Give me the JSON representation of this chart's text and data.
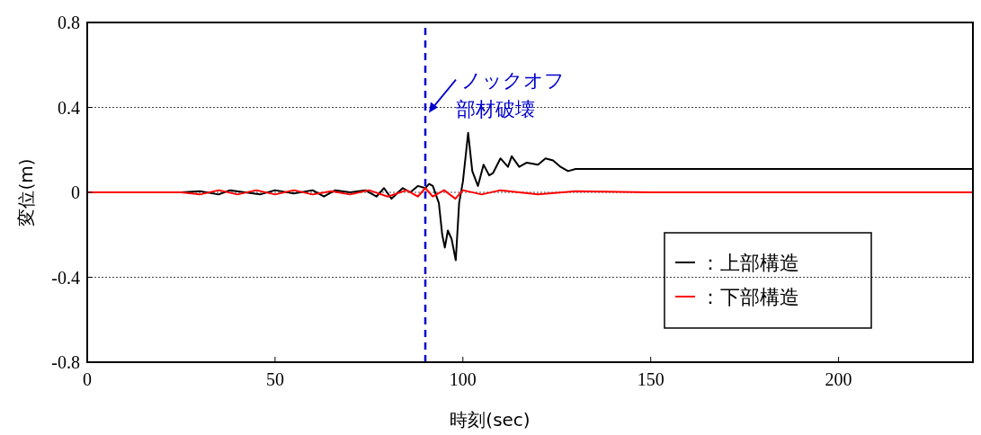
{
  "chart_data": {
    "type": "line",
    "xlabel": "時刻(sec)",
    "ylabel": "変位(m)",
    "xlim": [
      0,
      236
    ],
    "xticks": [
      0,
      50,
      100,
      150,
      200
    ],
    "ylim": [
      -0.8,
      0.8
    ],
    "yticks": [
      0.8,
      0.4,
      0,
      -0.4,
      -0.8
    ],
    "grid": "y",
    "legend": "bottom right",
    "line_style": "solid",
    "marker": "none",
    "series": [
      {
        "name": "：上部構造",
        "color": "#000000",
        "x": [
          0,
          25,
          30,
          35,
          38,
          42,
          46,
          50,
          55,
          60,
          63,
          66,
          70,
          74,
          77,
          79,
          81,
          84,
          86,
          88,
          90,
          91,
          92,
          93.6,
          94.5,
          95.2,
          96,
          97,
          98.1,
          99,
          100,
          101.4,
          102.5,
          104,
          105.5,
          107,
          108,
          110,
          112,
          113,
          115,
          117,
          120,
          122,
          124,
          126,
          128,
          130,
          140,
          150,
          160,
          170,
          180,
          190,
          200,
          210,
          220,
          236
        ],
        "values": [
          0,
          0,
          0.005,
          -0.01,
          0.01,
          0,
          -0.01,
          0.01,
          -0.005,
          0.01,
          -0.02,
          0.01,
          0,
          0.01,
          -0.02,
          0.02,
          -0.03,
          0.02,
          0,
          0.03,
          0.02,
          0.04,
          0.03,
          -0.05,
          -0.2,
          -0.26,
          -0.18,
          -0.22,
          -0.32,
          -0.05,
          0.05,
          0.28,
          0.1,
          0.03,
          0.13,
          0.08,
          0.09,
          0.16,
          0.12,
          0.17,
          0.12,
          0.14,
          0.13,
          0.16,
          0.15,
          0.12,
          0.1,
          0.11,
          0.11,
          0.11,
          0.11,
          0.11,
          0.11,
          0.11,
          0.11,
          0.11,
          0.11,
          0.11
        ]
      },
      {
        "name": "：下部構造",
        "color": "#ff0000",
        "x": [
          0,
          25,
          30,
          35,
          40,
          45,
          50,
          55,
          60,
          65,
          70,
          75,
          80,
          85,
          88,
          90,
          92,
          95,
          98,
          100,
          105,
          110,
          120,
          130,
          150,
          180,
          210,
          236
        ],
        "values": [
          0,
          0,
          -0.01,
          0.01,
          -0.01,
          0.01,
          -0.01,
          0.01,
          -0.01,
          0.005,
          -0.01,
          0.01,
          -0.02,
          0.01,
          -0.02,
          0.02,
          -0.02,
          0.01,
          -0.03,
          0.01,
          -0.01,
          0.01,
          -0.01,
          0.005,
          0,
          0,
          0,
          0
        ]
      }
    ],
    "ref_lines": [
      {
        "axis": "x",
        "value": 90,
        "color": "#0000cc",
        "line_style": "dashed",
        "label": null
      }
    ],
    "annotations": [
      {
        "text": "ノックオフ",
        "x": 90,
        "y": 0.37
      },
      "部材破壊"
    ]
  }
}
